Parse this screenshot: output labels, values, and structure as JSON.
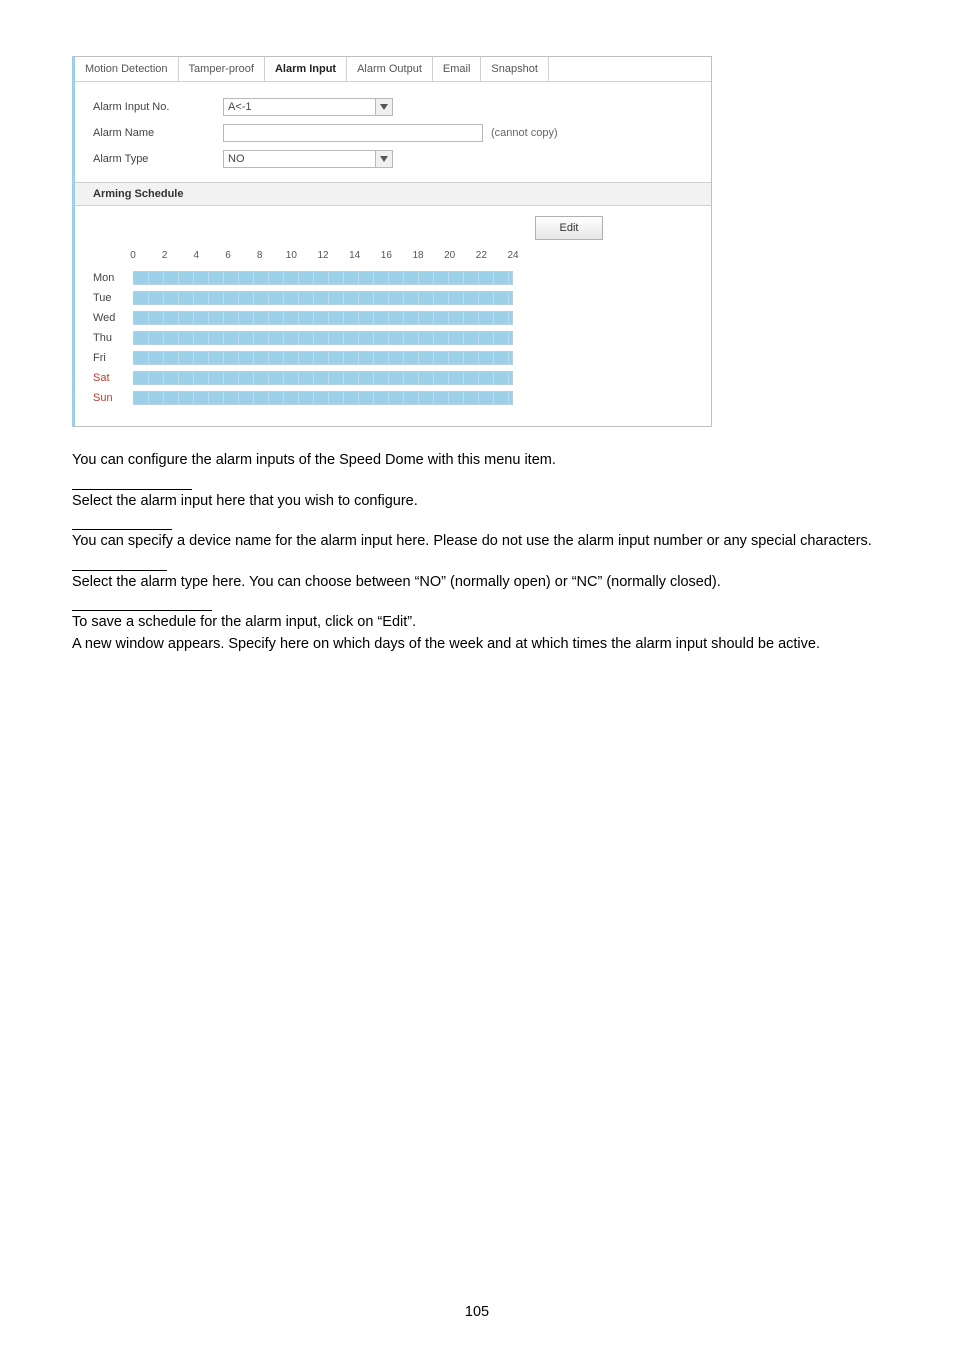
{
  "screenshot": {
    "tabs": [
      "Motion Detection",
      "Tamper-proof",
      "Alarm Input",
      "Alarm Output",
      "Email",
      "Snapshot"
    ],
    "active_tab_index": 2,
    "form": {
      "alarm_input_no_label": "Alarm Input No.",
      "alarm_input_no_value": "A<-1",
      "alarm_name_label": "Alarm Name",
      "alarm_name_hint": "(cannot copy)",
      "alarm_type_label": "Alarm Type",
      "alarm_type_value": "NO"
    },
    "arming_schedule_header": "Arming Schedule",
    "edit_button": "Edit",
    "ticks": [
      "0",
      "2",
      "4",
      "6",
      "8",
      "10",
      "12",
      "14",
      "16",
      "18",
      "20",
      "22",
      "24"
    ],
    "days": [
      {
        "label": "Mon",
        "weekend": false
      },
      {
        "label": "Tue",
        "weekend": false
      },
      {
        "label": "Wed",
        "weekend": false
      },
      {
        "label": "Thu",
        "weekend": false
      },
      {
        "label": "Fri",
        "weekend": false
      },
      {
        "label": "Sat",
        "weekend": true
      },
      {
        "label": "Sun",
        "weekend": true
      }
    ],
    "colors": {
      "border_accent": "#9cd0e8",
      "panel_border": "#c0c0c0",
      "bar_fill": "#9cd0e8",
      "bar_stripe": "#b8dcf0",
      "bar_border": "#b8cfe0",
      "weekend_text": "#c0392b"
    }
  },
  "body": {
    "intro": "You can configure the alarm inputs of the Speed Dome with this menu item.",
    "p1": "Select the alarm input here that you wish to configure.",
    "p2": "You can specify a device name for the alarm input here. Please do not use the alarm input number or any special characters.",
    "p3": "Select the alarm type here. You can choose between “NO” (normally open) or “NC” (normally closed).",
    "p4a": "To save a schedule for the alarm input, click on “Edit”.",
    "p4b": "A new window appears. Specify here on which days of the week and at which times the alarm input should be active."
  },
  "page_number": "105"
}
